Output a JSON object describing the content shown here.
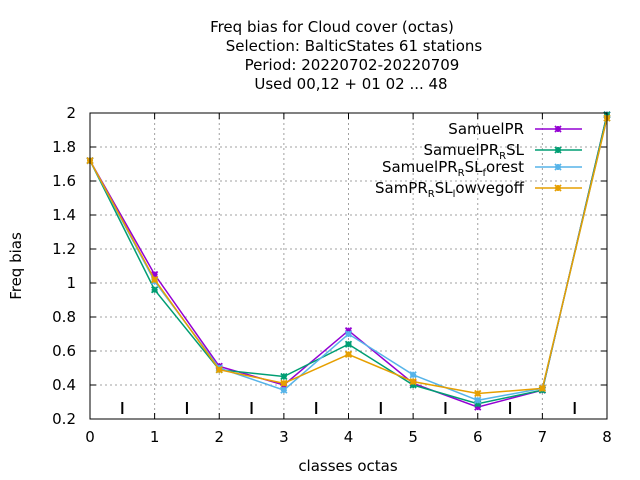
{
  "chart_data": {
    "type": "line",
    "title_lines": [
      "Freq bias  for Cloud cover (octas)",
      "Selection: BalticStates     61 stations",
      "Period: 20220702-20220709",
      "Used  00,12  + 01 02 ... 48"
    ],
    "xlabel": "classes octas",
    "ylabel": "Freq bias",
    "xlim": [
      0,
      8
    ],
    "ylim": [
      0.2,
      2
    ],
    "x_ticks": [
      "0",
      "1",
      "2",
      "3",
      "4",
      "5",
      "6",
      "7",
      "8"
    ],
    "y_ticks": [
      "0.2",
      "0.4",
      "0.6",
      "0.8",
      "1",
      "1.2",
      "1.4",
      "1.6",
      "1.8",
      "2"
    ],
    "grid": true,
    "legend_position": "top-right",
    "x": [
      0,
      1,
      2,
      3,
      4,
      5,
      6,
      7,
      8
    ],
    "series": [
      {
        "name": "SamuelPR",
        "legend_parts": [
          {
            "t": "SamuelPR"
          }
        ],
        "color": "#9400d3",
        "values": [
          1.72,
          1.05,
          0.51,
          0.4,
          0.72,
          0.41,
          0.27,
          0.37,
          1.99
        ]
      },
      {
        "name": "SamuelPR_R SL",
        "legend_parts": [
          {
            "t": "SamuelPR"
          },
          {
            "t": "R",
            "sub": true
          },
          {
            "t": "SL"
          }
        ],
        "color": "#009e73",
        "values": [
          1.72,
          0.96,
          0.49,
          0.45,
          0.64,
          0.4,
          0.29,
          0.37,
          1.99
        ]
      },
      {
        "name": "SamuelPR_R SL_f orest",
        "legend_parts": [
          {
            "t": "SamuelPR"
          },
          {
            "t": "R",
            "sub": true
          },
          {
            "t": "SL"
          },
          {
            "t": "f",
            "sub": true
          },
          {
            "t": "orest"
          }
        ],
        "color": "#56b4e9",
        "values": [
          1.72,
          1.01,
          0.5,
          0.37,
          0.7,
          0.46,
          0.31,
          0.38,
          1.97
        ]
      },
      {
        "name": "SamPR_R SL_l owvegoff",
        "legend_parts": [
          {
            "t": "SamPR"
          },
          {
            "t": "R",
            "sub": true
          },
          {
            "t": "SL"
          },
          {
            "t": "l",
            "sub": true
          },
          {
            "t": "owvegoff"
          }
        ],
        "color": "#e69f00",
        "values": [
          1.72,
          1.02,
          0.49,
          0.41,
          0.58,
          0.42,
          0.35,
          0.38,
          1.97
        ]
      }
    ],
    "observation_ticks_x": [
      0.5,
      1.5,
      2.5,
      3.5,
      4.5,
      5.5,
      6.5,
      7.5
    ]
  }
}
